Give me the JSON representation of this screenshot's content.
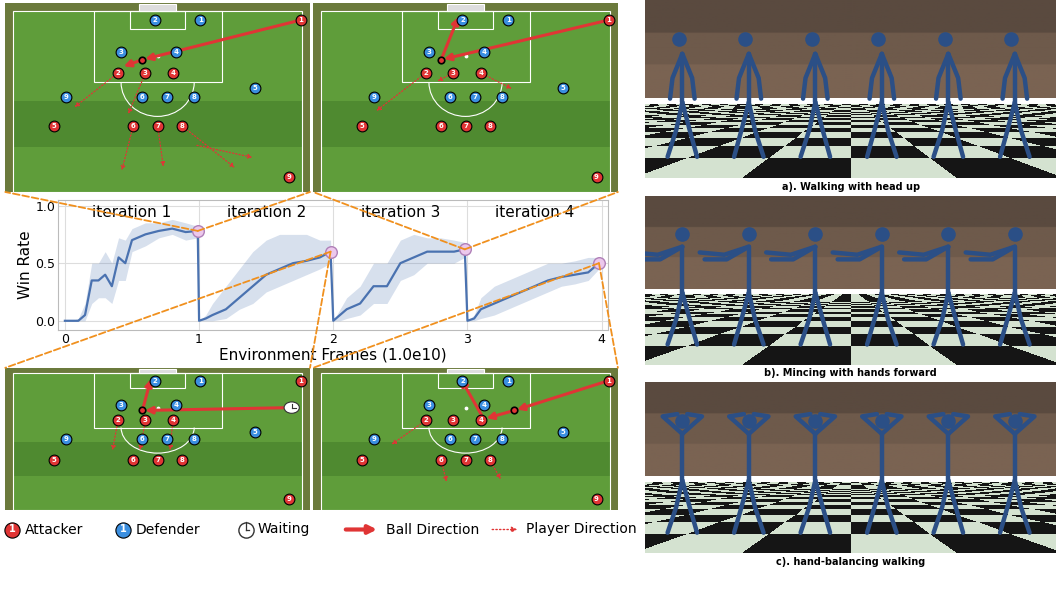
{
  "chart_data": {
    "type": "line",
    "xlabel": "Environment Frames (1.0e10)",
    "ylabel": "Win Rate",
    "x": [
      0,
      0.05,
      0.1,
      0.15,
      0.2,
      0.25,
      0.3,
      0.35,
      0.4,
      0.45,
      0.5,
      0.6,
      0.7,
      0.8,
      0.9,
      0.99,
      1.0,
      1.05,
      1.1,
      1.2,
      1.3,
      1.4,
      1.5,
      1.6,
      1.7,
      1.8,
      1.9,
      1.98,
      2.0,
      2.05,
      2.1,
      2.2,
      2.3,
      2.4,
      2.5,
      2.6,
      2.7,
      2.8,
      2.9,
      2.98,
      3.0,
      3.05,
      3.1,
      3.2,
      3.3,
      3.4,
      3.5,
      3.6,
      3.7,
      3.8,
      3.9,
      3.98
    ],
    "values": [
      0,
      0,
      0,
      0.05,
      0.35,
      0.35,
      0.4,
      0.3,
      0.55,
      0.5,
      0.7,
      0.75,
      0.78,
      0.8,
      0.77,
      0.78,
      0,
      0.02,
      0.05,
      0.1,
      0.2,
      0.3,
      0.4,
      0.45,
      0.5,
      0.52,
      0.55,
      0.6,
      0,
      0.05,
      0.1,
      0.15,
      0.3,
      0.3,
      0.5,
      0.55,
      0.6,
      0.6,
      0.6,
      0.62,
      0,
      0.02,
      0.1,
      0.15,
      0.2,
      0.25,
      0.3,
      0.35,
      0.38,
      0.4,
      0.42,
      0.5
    ],
    "band_lower": [
      0,
      0,
      0,
      0,
      0.15,
      0.2,
      0.2,
      0.15,
      0.35,
      0.35,
      0.6,
      0.65,
      0.72,
      0.75,
      0.7,
      0.72,
      0,
      0,
      0,
      0.02,
      0.1,
      0.15,
      0.25,
      0.3,
      0.35,
      0.4,
      0.45,
      0.5,
      0,
      0,
      0.02,
      0.05,
      0.15,
      0.15,
      0.35,
      0.4,
      0.5,
      0.5,
      0.5,
      0.55,
      0,
      0,
      0.02,
      0.05,
      0.1,
      0.15,
      0.2,
      0.25,
      0.3,
      0.32,
      0.35,
      0.45
    ],
    "band_upper": [
      0,
      0,
      0.02,
      0.15,
      0.5,
      0.5,
      0.6,
      0.5,
      0.72,
      0.7,
      0.8,
      0.85,
      0.85,
      0.88,
      0.85,
      0.82,
      0,
      0.05,
      0.15,
      0.3,
      0.45,
      0.6,
      0.7,
      0.75,
      0.75,
      0.75,
      0.7,
      0.7,
      0,
      0.1,
      0.2,
      0.3,
      0.5,
      0.5,
      0.7,
      0.75,
      0.72,
      0.72,
      0.7,
      0.68,
      0,
      0.05,
      0.2,
      0.3,
      0.35,
      0.4,
      0.45,
      0.5,
      0.5,
      0.52,
      0.55,
      0.55
    ],
    "color": "#4a72b0",
    "highlight_x": [
      0.99,
      1.98,
      2.98,
      3.98
    ],
    "annotations": [
      "iteration 1",
      "iteration 2",
      "iteration 3",
      "iteration 4"
    ],
    "xlim": [
      -0.05,
      4.05
    ],
    "ylim": [
      -0.08,
      1.05
    ],
    "xticks": [
      0,
      1,
      2,
      3,
      4
    ],
    "yticks": [
      {
        "value": 0,
        "label": "0.0"
      },
      0.5,
      {
        "value": 1,
        "label": "1.0"
      }
    ],
    "grid": true
  },
  "soccer_panels": {
    "attacker_numbers": [
      1,
      2,
      3,
      4,
      5,
      6,
      7,
      8,
      9
    ],
    "defender_numbers": [
      1,
      2,
      3,
      4,
      5,
      6,
      7,
      8,
      9
    ]
  },
  "legend_items": [
    {
      "label": "Attacker",
      "number": 1
    },
    {
      "label": "Defender",
      "number": 1
    },
    {
      "label": "Waiting"
    },
    {
      "label": "Ball Direction"
    },
    {
      "label": "Player Direction"
    }
  ],
  "motion_panels": [
    "a). Walking with head up",
    "b). Mincing with hands forward",
    "c). hand-balancing walking"
  ]
}
